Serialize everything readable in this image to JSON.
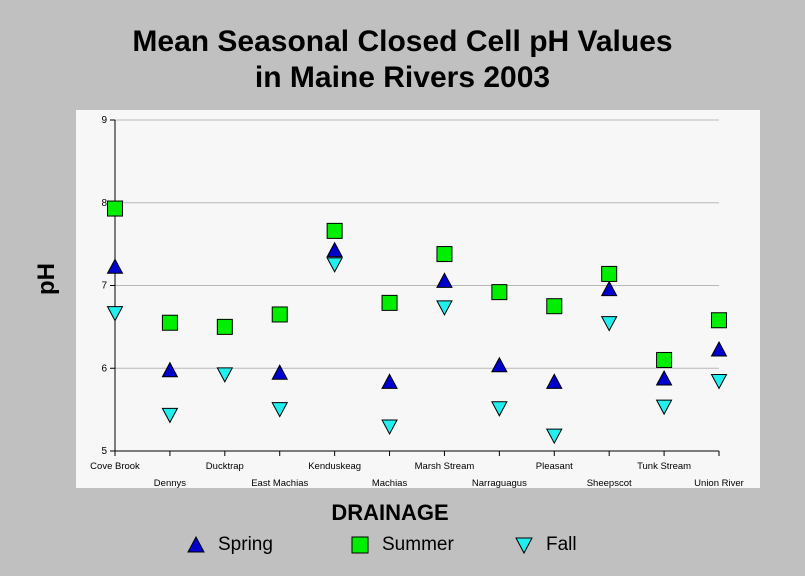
{
  "title_line1": "Mean Seasonal Closed Cell pH Values",
  "title_line2": "in Maine Rivers 2003",
  "chart_data": {
    "type": "scatter",
    "categories": [
      "Cove Brook",
      "Dennys",
      "Ducktrap",
      "East Machias",
      "Kenduskeag",
      "Machias",
      "Marsh Stream",
      "Narraguagus",
      "Pleasant",
      "Sheepscot",
      "Tunk Stream",
      "Union River"
    ],
    "series": [
      {
        "name": "Spring",
        "marker": "triangle-up",
        "color": "#0000cc",
        "values": [
          7.22,
          5.97,
          null,
          5.94,
          7.42,
          5.83,
          7.05,
          6.03,
          5.83,
          6.95,
          5.87,
          6.22
        ]
      },
      {
        "name": "Summer",
        "marker": "square",
        "color": "#00ee00",
        "values": [
          7.93,
          6.55,
          6.5,
          6.65,
          7.66,
          6.79,
          7.38,
          6.92,
          6.75,
          7.14,
          6.1,
          6.58
        ]
      },
      {
        "name": "Fall",
        "marker": "triangle-down",
        "color": "#22eeee",
        "values": [
          6.66,
          5.43,
          5.92,
          5.5,
          7.25,
          5.29,
          6.73,
          5.51,
          5.18,
          6.54,
          5.53,
          5.84
        ]
      }
    ],
    "xlabel": "DRAINAGE",
    "ylabel": "pH",
    "ylim": [
      5,
      9
    ],
    "yticks": [
      5,
      6,
      7,
      8,
      9
    ],
    "grid": true,
    "legend_position": "bottom"
  }
}
